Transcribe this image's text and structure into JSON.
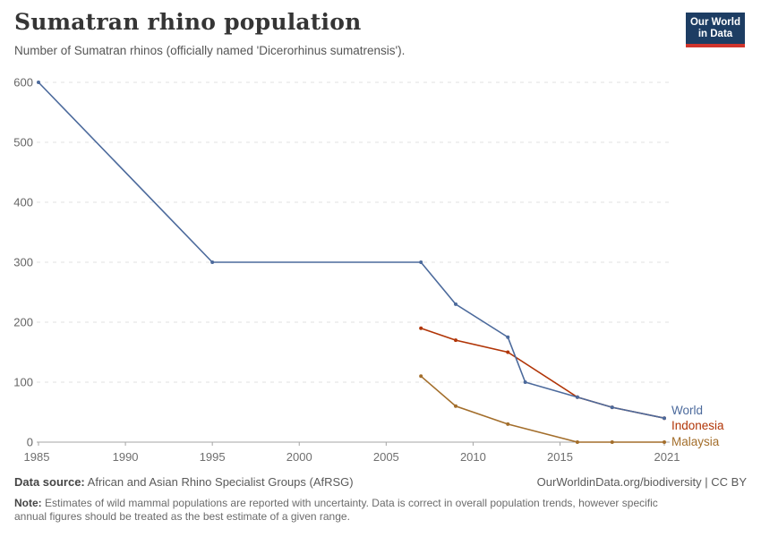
{
  "header": {
    "title": "Sumatran rhino population",
    "subtitle": "Number of Sumatran rhinos (officially named 'Dicerorhinus sumatrensis').",
    "logo_line1": "Our World",
    "logo_line2": "in Data",
    "logo_bg": "#1D3D63",
    "logo_accent": "#D0342C"
  },
  "chart_data": {
    "type": "line",
    "title": "Sumatran rhino population",
    "subtitle": "Number of Sumatran rhinos (officially named 'Dicerorhinus sumatrensis').",
    "xlabel": "",
    "ylabel": "",
    "xlim": [
      1985,
      2021
    ],
    "ylim": [
      0,
      600
    ],
    "x_ticks": [
      1985,
      1990,
      1995,
      2000,
      2005,
      2010,
      2015,
      2021
    ],
    "y_ticks": [
      0,
      100,
      200,
      300,
      400,
      500,
      600
    ],
    "grid": "horizontal-dashed",
    "legend_position": "end-of-line-labels",
    "series": [
      {
        "name": "World",
        "color": "#4C6A9C",
        "points": [
          [
            1985,
            600
          ],
          [
            1995,
            300
          ],
          [
            2007,
            300
          ],
          [
            2009,
            230
          ],
          [
            2012,
            175
          ],
          [
            2013,
            100
          ],
          [
            2016,
            75
          ],
          [
            2018,
            58
          ],
          [
            2021,
            40
          ]
        ]
      },
      {
        "name": "Indonesia",
        "color": "#B13507",
        "points": [
          [
            2007,
            190
          ],
          [
            2009,
            170
          ],
          [
            2012,
            150
          ],
          [
            2016,
            75
          ],
          [
            2018,
            58
          ],
          [
            2021,
            40
          ]
        ]
      },
      {
        "name": "Malaysia",
        "color": "#A36E2B",
        "points": [
          [
            2007,
            110
          ],
          [
            2009,
            60
          ],
          [
            2012,
            30
          ],
          [
            2016,
            0
          ],
          [
            2018,
            0
          ],
          [
            2021,
            0
          ]
        ]
      }
    ]
  },
  "footer": {
    "source_label": "Data source:",
    "source_text": "African and Asian Rhino Specialist Groups (AfRSG)",
    "attribution": "OurWorldinData.org/biodiversity | CC BY",
    "note_label": "Note:",
    "note_text": "Estimates of wild mammal populations are reported with uncertainty. Data is correct in overall population trends, however specific annual figures should be treated as the best estimate of a given range."
  }
}
